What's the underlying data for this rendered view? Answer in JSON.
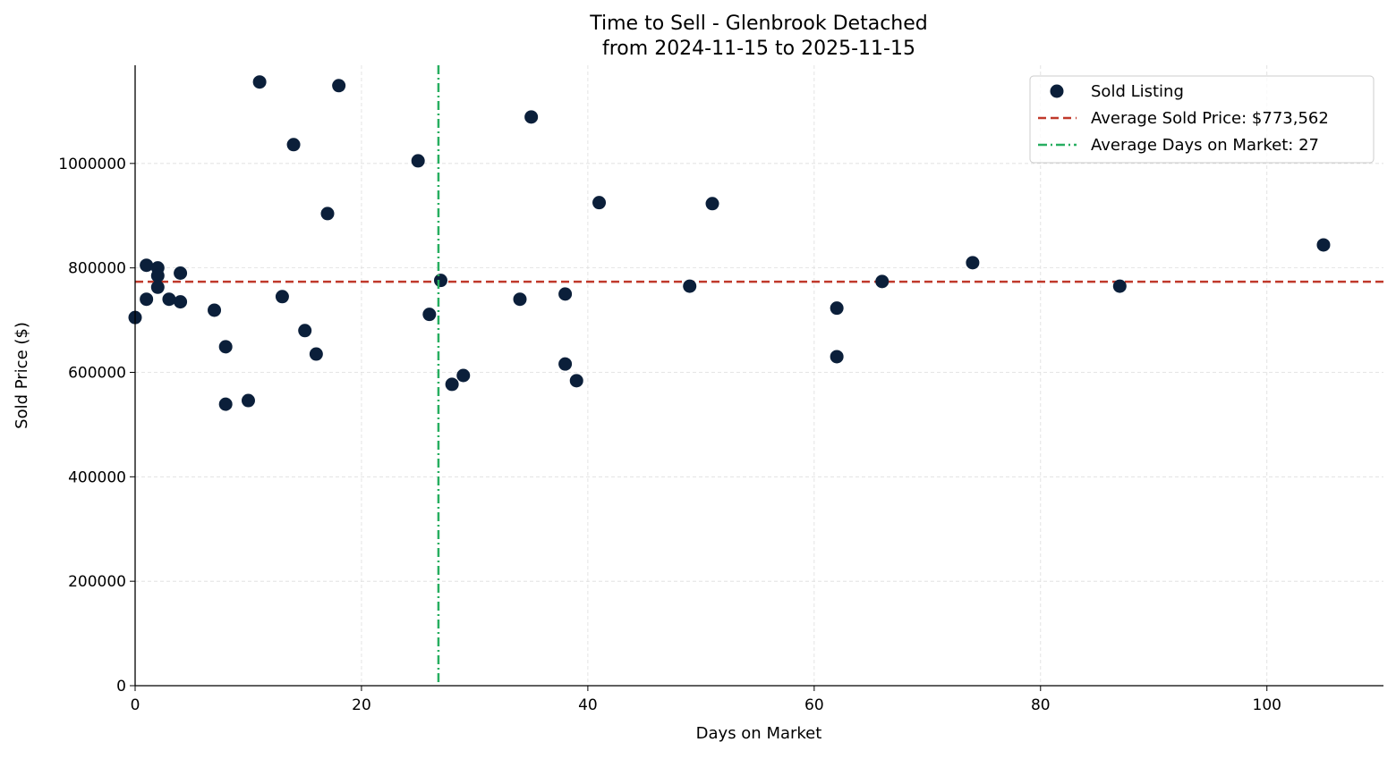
{
  "chart_data": {
    "type": "scatter",
    "title": "Time to Sell - Glenbrook Detached",
    "subtitle": "from 2024-11-15 to 2025-11-15",
    "xlabel": "Days on Market",
    "ylabel": "Sold Price ($)",
    "xlim": [
      0,
      110.3
    ],
    "ylim": [
      0,
      1188000
    ],
    "xticks": [
      0,
      20,
      40,
      60,
      80,
      100
    ],
    "yticks": [
      0,
      200000,
      400000,
      600000,
      800000,
      1000000
    ],
    "xtick_labels": [
      "0",
      "20",
      "40",
      "60",
      "80",
      "100"
    ],
    "ytick_labels": [
      "0",
      "200000",
      "400000",
      "600000",
      "800000",
      "1000000"
    ],
    "grid": true,
    "legend_position": "top-right",
    "series": [
      {
        "name": "Sold Listing",
        "color": "#0b1f3a",
        "x": [
          0,
          1,
          1,
          2,
          2,
          2,
          3,
          4,
          4,
          7,
          8,
          8,
          10,
          11,
          13,
          14,
          15,
          16,
          17,
          18,
          25,
          26,
          27,
          28,
          29,
          34,
          35,
          38,
          38,
          39,
          41,
          49,
          51,
          62,
          62,
          66,
          74,
          87,
          105
        ],
        "y": [
          705000,
          805000,
          740000,
          800000,
          785000,
          763000,
          740000,
          790000,
          735000,
          719000,
          649000,
          539000,
          546000,
          1156000,
          745000,
          1036000,
          680000,
          635000,
          904000,
          1149000,
          1005000,
          711000,
          776000,
          577000,
          594000,
          740000,
          1089000,
          750000,
          616000,
          584000,
          925000,
          765000,
          923000,
          723000,
          630000,
          774000,
          810000,
          765000,
          844000
        ]
      }
    ],
    "reference_lines": [
      {
        "orientation": "horizontal",
        "value": 773562,
        "label": "Average Sold Price: $773,562",
        "color": "#c0392b",
        "style": "dashed"
      },
      {
        "orientation": "vertical",
        "value": 26.8,
        "label": "Average Days on Market: 27",
        "color": "#27ae60",
        "style": "dashdot"
      }
    ]
  }
}
